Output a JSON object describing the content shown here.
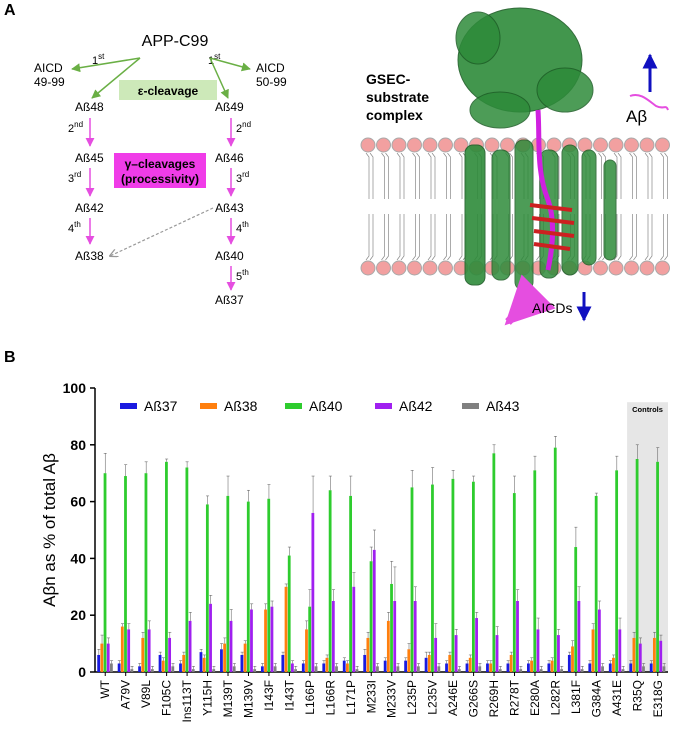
{
  "panel_a": {
    "label": "A",
    "substrate": "APP-C99",
    "aicd_left": [
      "AICD",
      "49-99"
    ],
    "aicd_right": [
      "AICD",
      "50-99"
    ],
    "first": "1",
    "st": "st",
    "epsilon_label": "ε-cleavage",
    "gamma_label": [
      "γ–cleavages",
      "(processivity)"
    ],
    "left_path": [
      "Aß48",
      "Aß45",
      "Aß42",
      "Aß38"
    ],
    "right_path": [
      "Aß49",
      "Aß46",
      "Aß43",
      "Aß40",
      "Aß37"
    ],
    "step_nums": [
      "2",
      "3",
      "4",
      "5"
    ],
    "step_sups": [
      "nd",
      "rd",
      "th",
      "th"
    ],
    "complex_label": [
      "GSEC-",
      "substrate",
      "complex"
    ],
    "abeta_label": "Aβ",
    "aicds_label": "AICDs",
    "colors": {
      "green": "#6aaf45",
      "magenta": "#e54ee0",
      "protein": "#2e8b3a",
      "lipid_head": "#f2a0a0",
      "blue": "#1010c0"
    }
  },
  "panel_b": {
    "label": "B",
    "controls_label": "Controls"
  },
  "chart_data": {
    "type": "bar",
    "ylabel": "Aβn as % of total Aβ",
    "ylim": [
      0,
      100
    ],
    "yticks": [
      0,
      20,
      40,
      60,
      80,
      100
    ],
    "categories": [
      "WT",
      "A79V",
      "V89L",
      "F105C",
      "Ins113T",
      "Y115H",
      "M139T",
      "M139V",
      "I143F",
      "I143T",
      "L166P",
      "L166R",
      "L171P",
      "M233I",
      "M233V",
      "L235P",
      "L235V",
      "A246E",
      "G266S",
      "R269H",
      "R278T",
      "E280A",
      "L282R",
      "L381F",
      "G384A",
      "A431E",
      "R35Q",
      "E318G"
    ],
    "series": [
      {
        "name": "Aß37",
        "color": "#1a1ae0",
        "values": [
          6,
          3,
          2,
          6,
          3,
          7,
          8,
          6,
          2,
          6,
          3,
          3,
          4,
          6,
          4,
          4,
          5,
          3,
          3,
          3,
          3,
          3,
          3,
          6,
          3,
          3,
          3,
          3
        ],
        "errors": [
          2,
          1,
          1,
          1,
          1,
          1,
          2,
          1,
          1,
          1,
          1,
          1,
          1,
          2,
          1,
          1,
          2,
          1,
          1,
          1,
          1,
          1,
          1,
          1,
          1,
          1,
          1,
          1
        ]
      },
      {
        "name": "Aß38",
        "color": "#ff7f0e",
        "values": [
          10,
          16,
          12,
          4,
          6,
          5,
          10,
          10,
          22,
          30,
          15,
          5,
          3,
          12,
          18,
          8,
          6,
          6,
          5,
          3,
          6,
          4,
          4,
          9,
          15,
          5,
          12,
          12
        ],
        "errors": [
          3,
          1,
          2,
          1,
          1,
          1,
          2,
          1,
          2,
          1,
          3,
          1,
          1,
          2,
          3,
          2,
          1,
          1,
          1,
          1,
          1,
          1,
          1,
          2,
          2,
          1,
          2,
          2
        ]
      },
      {
        "name": "Aß40",
        "color": "#2ecc2e",
        "values": [
          70,
          69,
          70,
          74,
          72,
          59,
          62,
          60,
          61,
          41,
          23,
          64,
          62,
          39,
          31,
          65,
          66,
          68,
          67,
          77,
          63,
          71,
          79,
          44,
          62,
          71,
          75,
          74
        ],
        "errors": [
          7,
          4,
          4,
          1,
          2,
          3,
          7,
          4,
          5,
          3,
          6,
          5,
          7,
          5,
          8,
          6,
          6,
          3,
          2,
          3,
          6,
          5,
          4,
          7,
          1,
          5,
          5,
          5
        ]
      },
      {
        "name": "Aß42",
        "color": "#a020f0",
        "values": [
          10,
          15,
          15,
          12,
          18,
          24,
          18,
          22,
          23,
          3,
          56,
          25,
          30,
          43,
          25,
          25,
          12,
          13,
          19,
          13,
          25,
          15,
          13,
          25,
          22,
          15,
          10,
          11
        ],
        "errors": [
          2,
          2,
          3,
          2,
          3,
          3,
          4,
          2,
          2,
          1,
          13,
          4,
          5,
          7,
          12,
          5,
          5,
          2,
          2,
          3,
          4,
          4,
          2,
          5,
          3,
          4,
          2,
          2
        ]
      },
      {
        "name": "Aß43",
        "color": "#808080",
        "values": [
          3,
          1,
          1,
          2,
          1,
          1,
          2,
          1,
          2,
          1,
          2,
          2,
          1,
          2,
          2,
          2,
          2,
          1,
          2,
          1,
          1,
          1,
          1,
          1,
          2,
          1,
          2,
          2
        ],
        "errors": [
          1,
          1,
          1,
          1,
          1,
          1,
          1,
          1,
          1,
          1,
          1,
          1,
          1,
          1,
          1,
          1,
          1,
          1,
          1,
          1,
          1,
          1,
          1,
          1,
          1,
          1,
          1,
          1
        ]
      }
    ],
    "legend_position": "top",
    "controls_group": [
      "R35Q",
      "E318G"
    ],
    "grid": false
  }
}
